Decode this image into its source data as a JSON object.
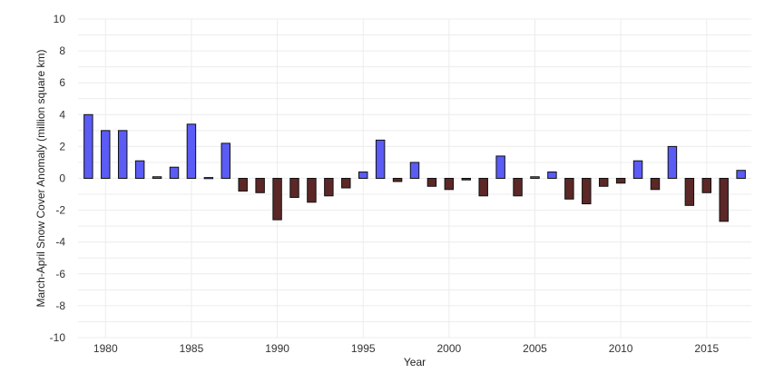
{
  "chart_data": {
    "type": "bar",
    "xlabel": "Year",
    "ylabel": "March-April Snow Cover Anomaly (million square km)",
    "ylim": [
      -10,
      10
    ],
    "yticks": [
      -10,
      -8,
      -6,
      -4,
      -2,
      0,
      2,
      4,
      6,
      8,
      10
    ],
    "xlim": [
      1979,
      2017
    ],
    "xticks": [
      1980,
      1985,
      1990,
      1995,
      2000,
      2005,
      2010,
      2015
    ],
    "grid": true,
    "legend": "none",
    "colors": {
      "positive": "#5b5bf5",
      "negative": "#5c2727",
      "edge": "#111111"
    },
    "x": [
      1979,
      1980,
      1981,
      1982,
      1983,
      1984,
      1985,
      1986,
      1987,
      1988,
      1989,
      1990,
      1991,
      1992,
      1993,
      1994,
      1995,
      1996,
      1997,
      1998,
      1999,
      2000,
      2001,
      2002,
      2003,
      2004,
      2005,
      2006,
      2007,
      2008,
      2009,
      2010,
      2011,
      2012,
      2013,
      2014,
      2015,
      2016,
      2017
    ],
    "values": [
      4.0,
      3.0,
      3.0,
      1.1,
      0.1,
      0.7,
      3.4,
      0.05,
      2.2,
      -0.8,
      -0.9,
      -2.6,
      -1.2,
      -1.5,
      -1.1,
      -0.6,
      0.4,
      2.4,
      -0.2,
      1.0,
      -0.5,
      -0.7,
      -0.1,
      -1.1,
      1.4,
      -1.1,
      0.1,
      0.4,
      -1.3,
      -1.6,
      -0.5,
      -0.3,
      1.1,
      -0.7,
      2.0,
      -1.7,
      -0.9,
      -2.7,
      0.5
    ]
  }
}
